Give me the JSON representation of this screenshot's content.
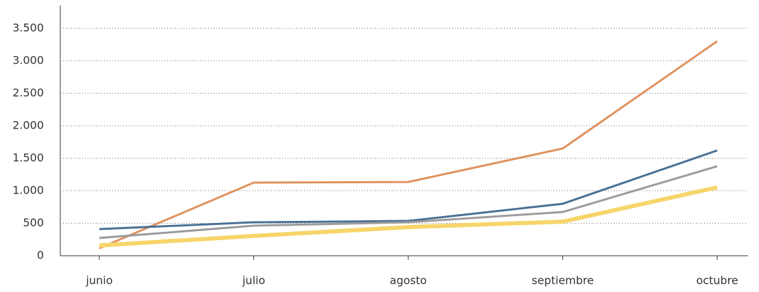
{
  "chart_data": {
    "type": "line",
    "categories": [
      "junio",
      "julio",
      "agosto",
      "septiembre",
      "octubre"
    ],
    "series": [
      {
        "color": "#e0915e",
        "values": [
          116,
          1125,
          1135,
          1650,
          3300
        ]
      },
      {
        "color": "#4a7194",
        "values": [
          410,
          515,
          536,
          800,
          1620
        ]
      },
      {
        "color": "#9b9b9b",
        "values": [
          273,
          463,
          515,
          673,
          1377
        ]
      },
      {
        "color": "#f6d56a",
        "values": [
          158,
          305,
          441,
          525,
          1051
        ]
      }
    ],
    "ylim": [
      0,
      3850
    ],
    "yticks": [
      0,
      500,
      {
        "value": 1000,
        "label": "1.000"
      },
      {
        "value": 1500,
        "label": "1.500"
      },
      {
        "value": 2000,
        "label": "2.000"
      },
      {
        "value": 2500,
        "label": "2.500"
      },
      {
        "value": 3000,
        "label": "3.000"
      },
      {
        "value": 3500,
        "label": "3.500"
      }
    ],
    "grid": true
  }
}
